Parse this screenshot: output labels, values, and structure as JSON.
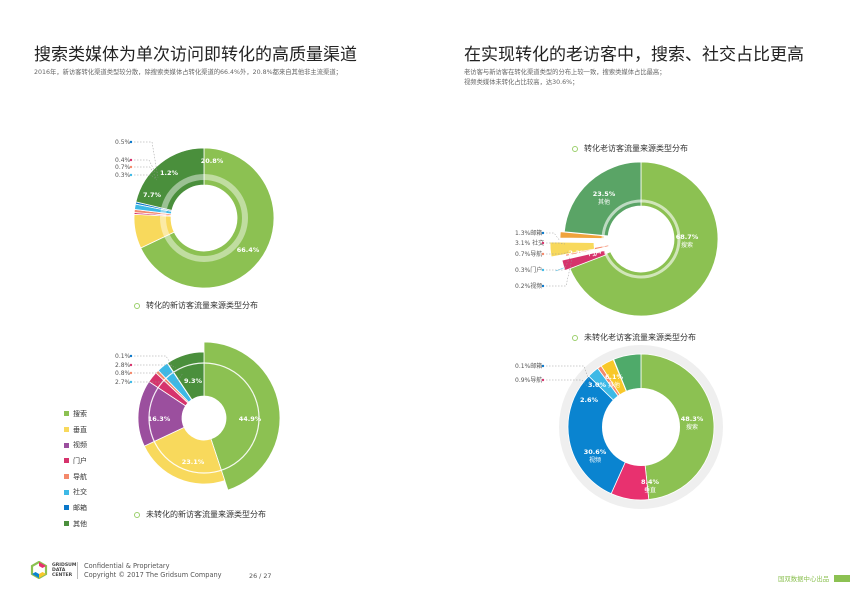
{
  "left": {
    "heading": "搜索类媒体为单次访问即转化的高质量渠道",
    "description": "2016年，新访客转化渠道类型较分散，除搜索类媒体占转化渠道的66.4%外，20.8%都来自其他非主流渠道；"
  },
  "right": {
    "heading": "在实现转化的老访客中，搜索、社交占比更高",
    "description_lines": [
      "老访客与新访客在转化渠道类型的分布上较一致，搜索类媒体占比最高；",
      "视频类媒体未转化占比较高，达30.6%；"
    ]
  },
  "legend": {
    "items": [
      {
        "label": "搜索",
        "color": "#8cc152"
      },
      {
        "label": "垂直",
        "color": "#f8d95c"
      },
      {
        "label": "视频",
        "color": "#9b4f9e"
      },
      {
        "label": "门户",
        "color": "#d6336c"
      },
      {
        "label": "导航",
        "color": "#f4896b"
      },
      {
        "label": "社交",
        "color": "#3db9e6"
      },
      {
        "label": "邮箱",
        "color": "#0a77c9"
      },
      {
        "label": "其他",
        "color": "#4a8f3c"
      }
    ]
  },
  "chart_data": [
    {
      "id": "c1",
      "type": "pie",
      "title": "转化的新访客流量来源类型分布",
      "slices": [
        {
          "label": "搜索",
          "value": 66.4,
          "color": "#8cc152",
          "text": "66.4%"
        },
        {
          "label": "垂直",
          "value": 7.7,
          "color": "#f8d95c",
          "text": "7.7%"
        },
        {
          "label": "门户",
          "value": 0.4,
          "color": "#d6336c",
          "text": "0.4%"
        },
        {
          "label": "导航",
          "value": 0.7,
          "color": "#f4896b",
          "text": "0.7%"
        },
        {
          "label": "社交",
          "value": 1.2,
          "color": "#3db9e6",
          "text": "1.2%"
        },
        {
          "label": "邮箱",
          "value": 0.5,
          "color": "#0a77c9",
          "text": "0.5%"
        },
        {
          "label": "其他",
          "value": 20.8,
          "color": "#4a8f3c",
          "text": "20.8%"
        }
      ],
      "callouts": [
        "0.5%",
        "0.4%",
        "0.7%",
        "0.3%"
      ]
    },
    {
      "id": "c2",
      "type": "pie",
      "title": "未转化的新访客流量来源类型分布",
      "slices": [
        {
          "label": "搜索",
          "value": 44.9,
          "color": "#8cc152",
          "text": "44.9%"
        },
        {
          "label": "垂直",
          "value": 23.1,
          "color": "#f8d95c",
          "text": "23.1%"
        },
        {
          "label": "视频",
          "value": 16.3,
          "color": "#9b4f9e",
          "text": "16.3%"
        },
        {
          "label": "门户",
          "value": 2.7,
          "color": "#d6336c",
          "text": ""
        },
        {
          "label": "导航",
          "value": 0.8,
          "color": "#f4896b",
          "text": ""
        },
        {
          "label": "社交",
          "value": 2.8,
          "color": "#3db9e6",
          "text": ""
        },
        {
          "label": "邮箱",
          "value": 0.1,
          "color": "#0a77c9",
          "text": ""
        },
        {
          "label": "其他",
          "value": 9.3,
          "color": "#4a8f3c",
          "text": "9.3%"
        }
      ],
      "callouts": [
        "0.1%",
        "2.8%",
        "0.8%",
        "2.7%"
      ]
    },
    {
      "id": "c3",
      "type": "pie",
      "title": "转化老访客流量来源类型分布",
      "slices": [
        {
          "label": "搜索",
          "value": 68.7,
          "color": "#8cc152",
          "text": "68.7%",
          "sub": "搜索"
        },
        {
          "label": "邮箱",
          "value": 0.2,
          "color": "#0a77c9",
          "text": ""
        },
        {
          "label": "社交",
          "value": 0.3,
          "color": "#3db9e6",
          "text": ""
        },
        {
          "label": "门户",
          "value": 2.2,
          "color": "#d6336c",
          "text": "2.2% 门户"
        },
        {
          "label": "导航",
          "value": 0.7,
          "color": "#f4896b",
          "text": ""
        },
        {
          "label": "社交",
          "value": 3.1,
          "color": "#f8d95c",
          "text": ""
        },
        {
          "label": "邮箱",
          "value": 1.3,
          "color": "#f0a33c",
          "text": ""
        },
        {
          "label": "其他",
          "value": 23.5,
          "color": "#5aa466",
          "text": "23.5%",
          "sub": "其他"
        }
      ],
      "callouts": [
        "1.3%邮箱",
        "3.1% 社交",
        "0.7%导航",
        "0.3%门户",
        "0.2%视频"
      ]
    },
    {
      "id": "c4",
      "type": "pie",
      "title": "未转化老访客流量来源类型分布",
      "slices": [
        {
          "label": "搜索",
          "value": 48.3,
          "color": "#8cc152",
          "text": "48.3%",
          "sub": "搜索"
        },
        {
          "label": "垂直",
          "value": 8.4,
          "color": "#e8316f",
          "text": "8.4%",
          "sub": "垂直"
        },
        {
          "label": "视频",
          "value": 30.6,
          "color": "#0a84d0",
          "text": "30.6%",
          "sub": "视频"
        },
        {
          "label": "社交",
          "value": 2.6,
          "color": "#3db9e6",
          "text": "2.6%"
        },
        {
          "label": "导航",
          "value": 0.9,
          "color": "#f4896b",
          "text": ""
        },
        {
          "label": "其他2",
          "value": 3.0,
          "color": "#f8c82a",
          "text": "3.0%"
        },
        {
          "label": "邮箱",
          "value": 0.1,
          "color": "#f2a13a",
          "text": ""
        },
        {
          "label": "其他",
          "value": 6.1,
          "color": "#4faa6a",
          "text": "6.1%",
          "sub": "其他"
        }
      ],
      "callouts": [
        "0.1%邮箱",
        "0.9%导航"
      ]
    }
  ],
  "footer": {
    "logo_lines": [
      "GRIDSUM",
      "DATA",
      "CENTER"
    ],
    "confidential": "Confidential & Proprietary",
    "copyright": "Copyright © 2017 The Gridsum Company",
    "page": "26 / 27",
    "brand": "国双数据中心出品"
  }
}
